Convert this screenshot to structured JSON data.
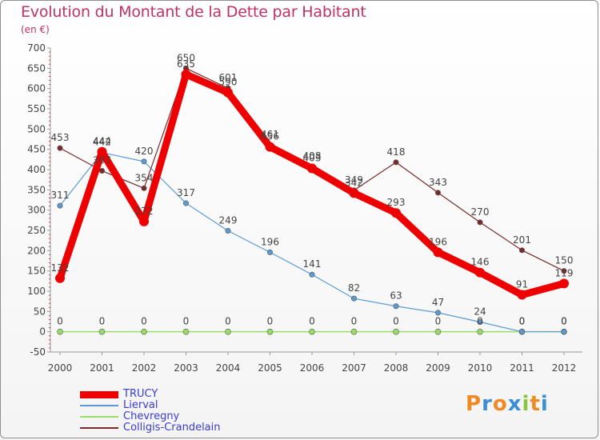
{
  "title": "Evolution du Montant de la Dette par Habitant",
  "subtitle": "(en €)",
  "logo_text": "Proxiti",
  "chart_data": {
    "type": "line",
    "x": [
      "2000",
      "2001",
      "2002",
      "2003",
      "2004",
      "2005",
      "2006",
      "2007",
      "2008",
      "2009",
      "2010",
      "2011",
      "2012"
    ],
    "ylim": [
      -50,
      700
    ],
    "yticks": [
      -50,
      0,
      50,
      100,
      150,
      200,
      250,
      300,
      350,
      400,
      450,
      500,
      550,
      600,
      650,
      700
    ],
    "grid": false,
    "legend_position": "bottom-left",
    "series": [
      {
        "name": "TRUCY",
        "color": "#ee0000",
        "values": [
          132,
          444,
          272,
          635,
          590,
          456,
          403,
          342,
          293,
          196,
          146,
          91,
          119
        ]
      },
      {
        "name": "Lierval",
        "color": "#5b9bd5",
        "values": [
          311,
          442,
          420,
          317,
          249,
          196,
          141,
          82,
          63,
          47,
          24,
          0,
          0
        ]
      },
      {
        "name": "Chevregny",
        "color": "#99dd66",
        "values": [
          0,
          0,
          0,
          0,
          0,
          0,
          0,
          0,
          0,
          0,
          0,
          0,
          0
        ]
      },
      {
        "name": "Colligis-Crandelain",
        "color": "#7a2a2a",
        "values": [
          453,
          397,
          354,
          650,
          601,
          461,
          408,
          349,
          418,
          343,
          270,
          201,
          150
        ]
      }
    ]
  }
}
